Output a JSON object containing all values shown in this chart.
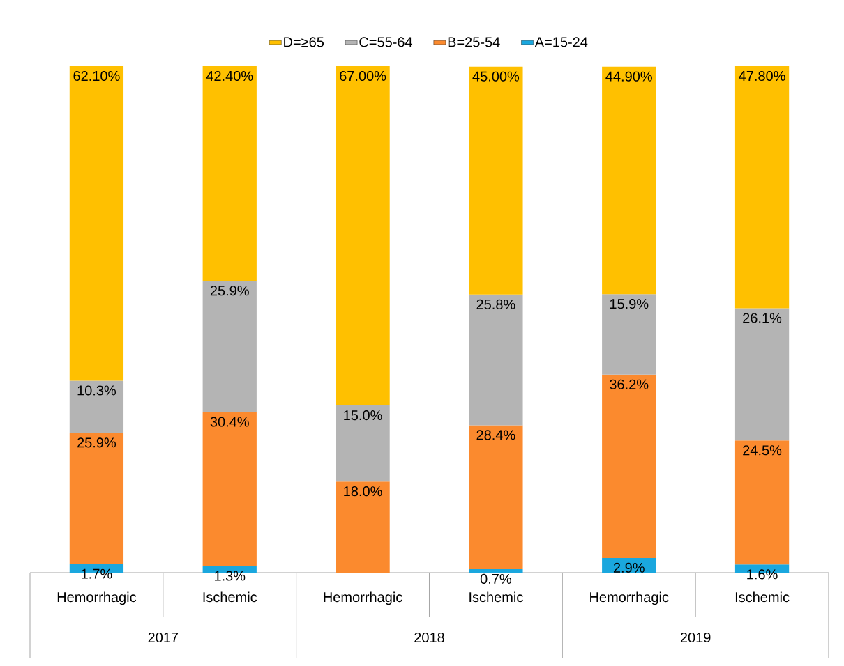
{
  "chart_data": {
    "type": "bar",
    "stacked": true,
    "legend": "top",
    "categories": [
      "Hemorrhagic",
      "Ischemic",
      "Hemorrhagic",
      "Ischemic",
      "Hemorrhagic",
      "Ischemic"
    ],
    "annotations": [
      "2017",
      "2018",
      "2019"
    ],
    "series": [
      {
        "name": "A=15-24",
        "color": "#1aa7de",
        "values": [
          1.7,
          1.3,
          null,
          0.7,
          2.9,
          1.6
        ],
        "value_labels": [
          "1.7%",
          "1.3%",
          null,
          "0.7%",
          "2.9%",
          "1.6%"
        ]
      },
      {
        "name": "B=25-54",
        "color": "#fb8a2e",
        "values": [
          25.9,
          30.4,
          18.0,
          28.4,
          36.2,
          24.5
        ],
        "value_labels": [
          "25.9%",
          "30.4%",
          "18.0%",
          "28.4%",
          "36.2%",
          "24.5%"
        ]
      },
      {
        "name": "C=55-64",
        "color": "#b4b4b4",
        "values": [
          10.3,
          25.9,
          15.0,
          25.8,
          15.9,
          26.1
        ],
        "value_labels": [
          "10.3%",
          "25.9%",
          "15.0%",
          "25.8%",
          "15.9%",
          "26.1%"
        ]
      },
      {
        "name": "D=≥65",
        "color": "#ffc000",
        "values": [
          62.1,
          42.4,
          67.0,
          45.0,
          44.9,
          47.8
        ],
        "value_labels": [
          "62.10%",
          "42.40%",
          "67.00%",
          "45.00%",
          "44.90%",
          "47.80%"
        ]
      }
    ]
  }
}
